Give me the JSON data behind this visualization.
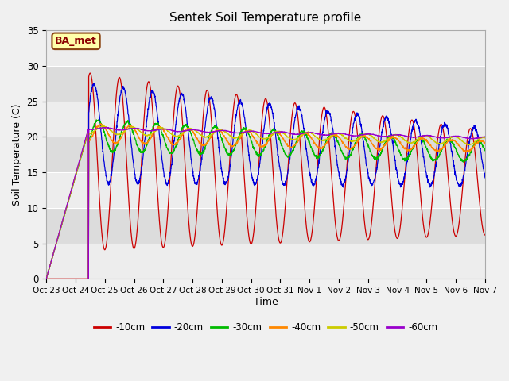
{
  "title": "Sentek Soil Temperature profile",
  "ylabel": "Soil Temperature (C)",
  "xlabel": "Time",
  "ylim": [
    0,
    35
  ],
  "annotation": "BA_met",
  "fig_facecolor": "#f0f0f0",
  "plot_facecolor": "#dcdcdc",
  "legend": [
    "-10cm",
    "-20cm",
    "-30cm",
    "-40cm",
    "-50cm",
    "-60cm"
  ],
  "colors": [
    "#cc0000",
    "#0000dd",
    "#00bb00",
    "#ff8800",
    "#cccc00",
    "#9900cc"
  ],
  "xtick_labels": [
    "Oct 23",
    "Oct 24",
    "Oct 25",
    "Oct 26",
    "Oct 27",
    "Oct 28",
    "Oct 29",
    "Oct 30",
    "Oct 31",
    "Nov 1",
    "Nov 2",
    "Nov 3",
    "Nov 4",
    "Nov 5",
    "Nov 6",
    "Nov 7"
  ],
  "n_days": 15,
  "samples_per_day": 144,
  "figsize": [
    6.4,
    4.8
  ],
  "dpi": 100
}
